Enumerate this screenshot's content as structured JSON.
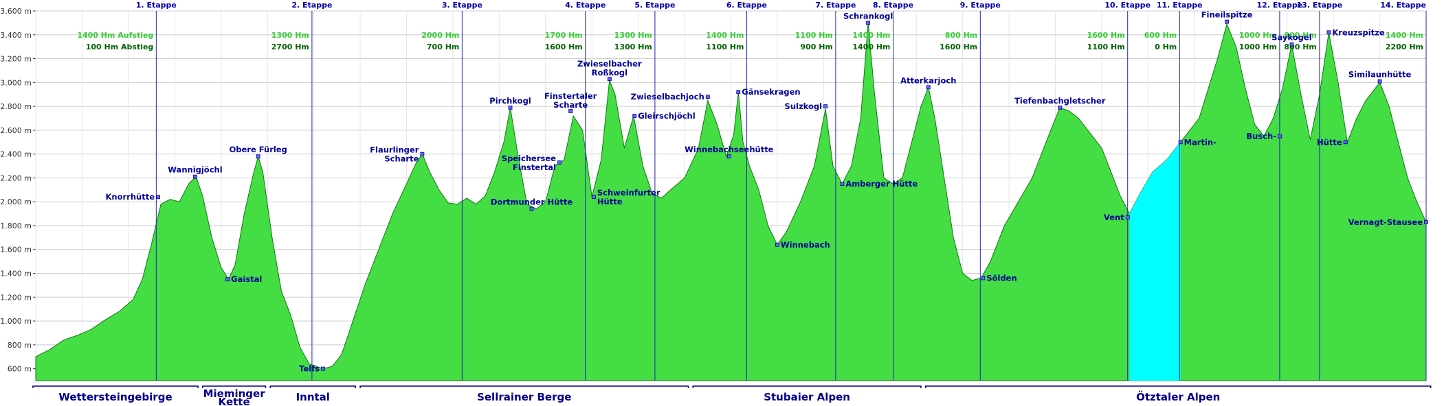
{
  "chart_data": {
    "type": "area",
    "title": "",
    "xlabel": "",
    "ylabel": "",
    "y_unit": "m",
    "ylim": [
      500,
      3600
    ],
    "y_ticks": [
      600,
      800,
      1000,
      1200,
      1400,
      1600,
      1800,
      2000,
      2200,
      2400,
      2600,
      2800,
      3000,
      3200,
      3400,
      3600
    ],
    "y_tick_labels": [
      "600 m",
      "800 m",
      "1.000 m",
      "1.200 m",
      "1.400 m",
      "1.600 m",
      "1.800 m",
      "2.000 m",
      "2.200 m",
      "2.400 m",
      "2.600 m",
      "2.800 m",
      "3.000 m",
      "3.200 m",
      "3.400 m",
      "3.600 m"
    ],
    "grid": true,
    "fill_color": "#44dd44",
    "highlight_color": "#00ffff",
    "line_color": "#2222bb",
    "profile": [
      {
        "x": 0,
        "y": 700
      },
      {
        "x": 1.5,
        "y": 760
      },
      {
        "x": 3,
        "y": 840
      },
      {
        "x": 4.5,
        "y": 880
      },
      {
        "x": 6,
        "y": 930
      },
      {
        "x": 7.5,
        "y": 1010
      },
      {
        "x": 9,
        "y": 1080
      },
      {
        "x": 10.5,
        "y": 1180
      },
      {
        "x": 11.5,
        "y": 1350
      },
      {
        "x": 12.5,
        "y": 1650
      },
      {
        "x": 13.5,
        "y": 1980
      },
      {
        "x": 14.5,
        "y": 2020
      },
      {
        "x": 15.5,
        "y": 2000
      },
      {
        "x": 16.5,
        "y": 2150
      },
      {
        "x": 17.3,
        "y": 2210
      },
      {
        "x": 18,
        "y": 2050
      },
      {
        "x": 19,
        "y": 1700
      },
      {
        "x": 20,
        "y": 1450
      },
      {
        "x": 20.8,
        "y": 1350
      },
      {
        "x": 21.5,
        "y": 1470
      },
      {
        "x": 22.5,
        "y": 1900
      },
      {
        "x": 23.5,
        "y": 2240
      },
      {
        "x": 24,
        "y": 2380
      },
      {
        "x": 24.5,
        "y": 2250
      },
      {
        "x": 25.5,
        "y": 1700
      },
      {
        "x": 26.5,
        "y": 1250
      },
      {
        "x": 27.5,
        "y": 1050
      },
      {
        "x": 28.5,
        "y": 780
      },
      {
        "x": 29.5,
        "y": 640
      },
      {
        "x": 31,
        "y": 600
      },
      {
        "x": 32,
        "y": 620
      },
      {
        "x": 33,
        "y": 720
      },
      {
        "x": 34,
        "y": 950
      },
      {
        "x": 35.5,
        "y": 1300
      },
      {
        "x": 37,
        "y": 1600
      },
      {
        "x": 38.5,
        "y": 1900
      },
      {
        "x": 40,
        "y": 2150
      },
      {
        "x": 41,
        "y": 2320
      },
      {
        "x": 41.7,
        "y": 2400
      },
      {
        "x": 42.5,
        "y": 2250
      },
      {
        "x": 43.5,
        "y": 2100
      },
      {
        "x": 44.5,
        "y": 1990
      },
      {
        "x": 45.5,
        "y": 1980
      },
      {
        "x": 46.5,
        "y": 2030
      },
      {
        "x": 47.5,
        "y": 1980
      },
      {
        "x": 48.5,
        "y": 2050
      },
      {
        "x": 49.5,
        "y": 2250
      },
      {
        "x": 50.5,
        "y": 2500
      },
      {
        "x": 51.2,
        "y": 2790
      },
      {
        "x": 52,
        "y": 2400
      },
      {
        "x": 53,
        "y": 1980
      },
      {
        "x": 54,
        "y": 1940
      },
      {
        "x": 55,
        "y": 2000
      },
      {
        "x": 56,
        "y": 2300
      },
      {
        "x": 57,
        "y": 2350
      },
      {
        "x": 58,
        "y": 2720
      },
      {
        "x": 59,
        "y": 2600
      },
      {
        "x": 60,
        "y": 2040
      },
      {
        "x": 61,
        "y": 2350
      },
      {
        "x": 61.9,
        "y": 3020
      },
      {
        "x": 62.5,
        "y": 2900
      },
      {
        "x": 63.5,
        "y": 2450
      },
      {
        "x": 64.5,
        "y": 2720
      },
      {
        "x": 65.5,
        "y": 2300
      },
      {
        "x": 66.5,
        "y": 2070
      },
      {
        "x": 67.5,
        "y": 2030
      },
      {
        "x": 68.5,
        "y": 2100
      },
      {
        "x": 70,
        "y": 2200
      },
      {
        "x": 71.5,
        "y": 2450
      },
      {
        "x": 72.5,
        "y": 2850
      },
      {
        "x": 73.5,
        "y": 2650
      },
      {
        "x": 74.5,
        "y": 2380
      },
      {
        "x": 75.3,
        "y": 2560
      },
      {
        "x": 75.8,
        "y": 2920
      },
      {
        "x": 76.3,
        "y": 2500
      },
      {
        "x": 77,
        "y": 2300
      },
      {
        "x": 78,
        "y": 2100
      },
      {
        "x": 79,
        "y": 1800
      },
      {
        "x": 80,
        "y": 1640
      },
      {
        "x": 81,
        "y": 1750
      },
      {
        "x": 82.5,
        "y": 2000
      },
      {
        "x": 84,
        "y": 2300
      },
      {
        "x": 85.2,
        "y": 2780
      },
      {
        "x": 86,
        "y": 2300
      },
      {
        "x": 87,
        "y": 2150
      },
      {
        "x": 88,
        "y": 2300
      },
      {
        "x": 89,
        "y": 2700
      },
      {
        "x": 89.8,
        "y": 3500
      },
      {
        "x": 90.5,
        "y": 2900
      },
      {
        "x": 91.5,
        "y": 2200
      },
      {
        "x": 92.5,
        "y": 2150
      },
      {
        "x": 93.5,
        "y": 2200
      },
      {
        "x": 94.5,
        "y": 2500
      },
      {
        "x": 95.5,
        "y": 2800
      },
      {
        "x": 96.3,
        "y": 2960
      },
      {
        "x": 97,
        "y": 2700
      },
      {
        "x": 98,
        "y": 2200
      },
      {
        "x": 99,
        "y": 1700
      },
      {
        "x": 100,
        "y": 1400
      },
      {
        "x": 101,
        "y": 1340
      },
      {
        "x": 102,
        "y": 1360
      },
      {
        "x": 103,
        "y": 1500
      },
      {
        "x": 104.5,
        "y": 1800
      },
      {
        "x": 106,
        "y": 2000
      },
      {
        "x": 107.5,
        "y": 2200
      },
      {
        "x": 108.5,
        "y": 2400
      },
      {
        "x": 109.5,
        "y": 2600
      },
      {
        "x": 110.5,
        "y": 2790
      },
      {
        "x": 111.5,
        "y": 2760
      },
      {
        "x": 112.5,
        "y": 2700
      },
      {
        "x": 114,
        "y": 2550
      },
      {
        "x": 115,
        "y": 2450
      },
      {
        "x": 116,
        "y": 2250
      },
      {
        "x": 117,
        "y": 2050
      },
      {
        "x": 118,
        "y": 1900
      },
      {
        "x": 119,
        "y": 2050
      },
      {
        "x": 120.5,
        "y": 2250
      },
      {
        "x": 122,
        "y": 2350
      },
      {
        "x": 123.5,
        "y": 2500
      },
      {
        "x": 124.5,
        "y": 2600
      },
      {
        "x": 125.5,
        "y": 2700
      },
      {
        "x": 126.5,
        "y": 2950
      },
      {
        "x": 127.5,
        "y": 3200
      },
      {
        "x": 128.5,
        "y": 3490
      },
      {
        "x": 129.5,
        "y": 3300
      },
      {
        "x": 130.5,
        "y": 2950
      },
      {
        "x": 131.5,
        "y": 2650
      },
      {
        "x": 132.5,
        "y": 2550
      },
      {
        "x": 133.5,
        "y": 2700
      },
      {
        "x": 134.5,
        "y": 2950
      },
      {
        "x": 135.5,
        "y": 3320
      },
      {
        "x": 136.5,
        "y": 2900
      },
      {
        "x": 137.5,
        "y": 2520
      },
      {
        "x": 138.5,
        "y": 2900
      },
      {
        "x": 139.5,
        "y": 3420
      },
      {
        "x": 140.5,
        "y": 3000
      },
      {
        "x": 141.5,
        "y": 2500
      },
      {
        "x": 142.5,
        "y": 2700
      },
      {
        "x": 143.5,
        "y": 2850
      },
      {
        "x": 145,
        "y": 3000
      },
      {
        "x": 146,
        "y": 2800
      },
      {
        "x": 147,
        "y": 2500
      },
      {
        "x": 148,
        "y": 2200
      },
      {
        "x": 149,
        "y": 2000
      },
      {
        "x": 150,
        "y": 1830
      }
    ],
    "x_max": 150,
    "highlight_range": [
      118,
      123.5
    ],
    "stages": [
      {
        "x": 13,
        "label": "1. Etappe",
        "up": "1400 Hm Aufstieg",
        "down": "100 Hm Abstieg"
      },
      {
        "x": 29.8,
        "label": "2. Etappe",
        "up": "1300 Hm",
        "down": "2700 Hm"
      },
      {
        "x": 46,
        "label": "3. Etappe",
        "up": "2000 Hm",
        "down": "700 Hm"
      },
      {
        "x": 59.3,
        "label": "4. Etappe",
        "up": "1700 Hm",
        "down": "1600 Hm"
      },
      {
        "x": 66.8,
        "label": "5. Etappe",
        "up": "1300 Hm",
        "down": "1300 Hm"
      },
      {
        "x": 76.7,
        "label": "6. Etappe",
        "up": "1400 Hm",
        "down": "1100 Hm"
      },
      {
        "x": 86.3,
        "label": "7. Etappe",
        "up": "1100 Hm",
        "down": "900 Hm"
      },
      {
        "x": 92.5,
        "label": "8. Etappe",
        "up": "1400 Hm",
        "down": "1400 Hm"
      },
      {
        "x": 101.9,
        "label": "9. Etappe",
        "up": "800 Hm",
        "down": "1600 Hm"
      },
      {
        "x": 117.8,
        "label": "10. Etappe",
        "up": "1600 Hm",
        "down": "1100 Hm"
      },
      {
        "x": 123.4,
        "label": "11. Etappe",
        "up": "600 Hm",
        "down": "0 Hm"
      },
      {
        "x": 134.2,
        "label": "12. Etappe",
        "up": "1000 Hm",
        "down": "1000 Hm"
      },
      {
        "x": 138.5,
        "label": "13. Etappe",
        "up": "800 Hm",
        "down": "800 Hm"
      },
      {
        "x": 150,
        "label": "14. Etappe",
        "up": "1400 Hm",
        "down": "2200 Hm"
      }
    ],
    "waypoints": [
      {
        "x": 13.2,
        "y": 2040,
        "label": "Knorrhütte",
        "anchor": "end"
      },
      {
        "x": 17.2,
        "y": 2210,
        "label": "Wannigjöchl",
        "anchor": "middle"
      },
      {
        "x": 20.7,
        "y": 1350,
        "label": "Gaistal",
        "anchor": "start"
      },
      {
        "x": 24,
        "y": 2380,
        "label": "Obere Fürleg",
        "anchor": "middle"
      },
      {
        "x": 31,
        "y": 600,
        "label": "Telfs",
        "anchor": "end"
      },
      {
        "x": 41.7,
        "y": 2400,
        "label": "Flaurlinger",
        "label2": "Scharte",
        "anchor": "end"
      },
      {
        "x": 51.2,
        "y": 2790,
        "label": "Pirchkogl",
        "anchor": "middle"
      },
      {
        "x": 53.5,
        "y": 1940,
        "label": "Dortmunder Hütte",
        "anchor": "middle"
      },
      {
        "x": 56.5,
        "y": 2330,
        "label": "Speichersee",
        "label2": "Finstertal",
        "anchor": "end"
      },
      {
        "x": 57.7,
        "y": 2760,
        "label": "Finstertaler",
        "label2": "Scharte",
        "anchor": "middle"
      },
      {
        "x": 60.2,
        "y": 2040,
        "label": "Schweinfurter",
        "label2": "Hütte",
        "anchor": "start"
      },
      {
        "x": 61.9,
        "y": 3030,
        "label": "Zwieselbacher",
        "label2": "Roßkogl",
        "anchor": "middle"
      },
      {
        "x": 64.6,
        "y": 2720,
        "label": "Gleirschjöchl",
        "anchor": "start"
      },
      {
        "x": 72.5,
        "y": 2880,
        "label": "Zwieselbachjoch",
        "anchor": "end"
      },
      {
        "x": 74.8,
        "y": 2380,
        "label": "Winnebachseehütte",
        "anchor": "middle"
      },
      {
        "x": 75.8,
        "y": 2920,
        "label": "Gänsekragen",
        "anchor": "start"
      },
      {
        "x": 80,
        "y": 1640,
        "label": "Winnebach",
        "anchor": "start"
      },
      {
        "x": 85.2,
        "y": 2800,
        "label": "Sulzkogl",
        "anchor": "end"
      },
      {
        "x": 87,
        "y": 2150,
        "label": "Amberger Hütte",
        "anchor": "start"
      },
      {
        "x": 89.8,
        "y": 3500,
        "label": "Schrankogl",
        "anchor": "middle"
      },
      {
        "x": 96.3,
        "y": 2960,
        "label": "Atterkarjoch",
        "anchor": "middle"
      },
      {
        "x": 102.2,
        "y": 1360,
        "label": "Sölden",
        "anchor": "start"
      },
      {
        "x": 110.5,
        "y": 2790,
        "label": "Tiefenbachgletscher",
        "anchor": "middle"
      },
      {
        "x": 117.8,
        "y": 1870,
        "label": "Vent",
        "anchor": "end"
      },
      {
        "x": 123.5,
        "y": 2500,
        "label": "Martin-",
        "anchor": "start"
      },
      {
        "x": 128.5,
        "y": 3510,
        "label": "Fineilspitze",
        "anchor": "middle"
      },
      {
        "x": 134.2,
        "y": 2550,
        "label": "Busch-",
        "anchor": "end"
      },
      {
        "x": 135.5,
        "y": 3320,
        "label": "Saykogel",
        "anchor": "middle"
      },
      {
        "x": 139.5,
        "y": 3420,
        "label": "Kreuzspitze",
        "anchor": "start"
      },
      {
        "x": 141.3,
        "y": 2500,
        "label": "Hütte",
        "anchor": "end"
      },
      {
        "x": 145,
        "y": 3010,
        "label": "Similaunhütte",
        "anchor": "middle"
      },
      {
        "x": 150,
        "y": 1830,
        "label": "Vernagt-Stausee",
        "anchor": "end"
      }
    ],
    "regions": [
      {
        "x0": -0.3,
        "x1": 17.5,
        "label": "Wettersteingebirge"
      },
      {
        "x0": 18,
        "x1": 24.8,
        "label": "Mieminger",
        "label2": "Kette"
      },
      {
        "x0": 25.3,
        "x1": 34.5,
        "label": "Inntal"
      },
      {
        "x0": 35,
        "x1": 70.4,
        "label": "Sellrainer Berge"
      },
      {
        "x0": 70.9,
        "x1": 95.5,
        "label": "Stubaier Alpen"
      },
      {
        "x0": 96,
        "x1": 150.5,
        "label": "Ötztaler Alpen"
      }
    ]
  }
}
